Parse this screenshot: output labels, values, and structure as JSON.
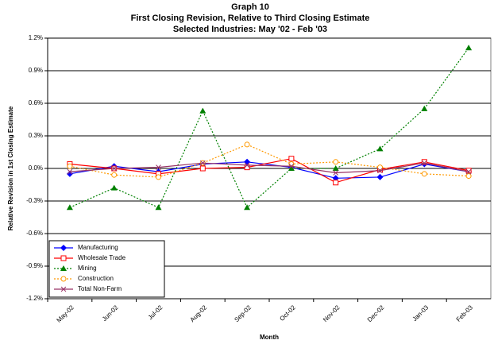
{
  "chart_data": {
    "type": "line",
    "title": [
      "Graph 10",
      "First Closing Revision, Relative to Third Closing Estimate",
      "Selected Industries: May '02 - Feb '03"
    ],
    "x_label": "Month",
    "y_label": "Relative Revision in 1st Closing Estimate",
    "categories": [
      "May-02",
      "Jun-02",
      "Jul-02",
      "Aug-02",
      "Sep-02",
      "Oct-02",
      "Nov-02",
      "Dec-02",
      "Jan-03",
      "Feb-03"
    ],
    "series": [
      {
        "name": "Manufacturing",
        "color": "#0000ff",
        "marker": "diamond",
        "line_style": "solid",
        "values": [
          -0.05,
          0.02,
          -0.03,
          0.04,
          0.06,
          0.01,
          -0.09,
          -0.08,
          0.04,
          -0.03
        ]
      },
      {
        "name": "Wholesale Trade",
        "color": "#ff0000",
        "marker": "square",
        "line_style": "solid",
        "values": [
          0.04,
          0.0,
          -0.05,
          0.0,
          0.01,
          0.09,
          -0.13,
          -0.01,
          0.06,
          -0.02
        ]
      },
      {
        "name": "Mining",
        "color": "#008000",
        "marker": "triangle",
        "line_style": "dotted",
        "values": [
          -0.36,
          -0.18,
          -0.36,
          0.53,
          -0.36,
          0.0,
          0.0,
          0.18,
          0.55,
          1.11
        ]
      },
      {
        "name": "Construction",
        "color": "#ff9900",
        "marker": "circle",
        "line_style": "dotted",
        "values": [
          0.02,
          -0.06,
          -0.08,
          0.05,
          0.22,
          0.04,
          0.06,
          0.01,
          -0.05,
          -0.07
        ]
      },
      {
        "name": "Total Non-Farm",
        "color": "#993366",
        "marker": "x",
        "line_style": "solid",
        "values": [
          -0.03,
          0.0,
          0.01,
          0.05,
          0.03,
          0.02,
          -0.04,
          -0.02,
          0.05,
          -0.03
        ]
      }
    ],
    "ylim": [
      -1.2,
      1.2
    ],
    "yticks": [
      {
        "value": -1.2,
        "label": "-1.2%"
      },
      {
        "value": -0.9,
        "label": "-0.9%"
      },
      {
        "value": -0.6,
        "label": "-0.6%"
      },
      {
        "value": -0.3,
        "label": "-0.3%"
      },
      {
        "value": 0,
        "label": "0.0%"
      },
      {
        "value": 0.3,
        "label": "0.3%"
      },
      {
        "value": 0.6,
        "label": "0.6%"
      },
      {
        "value": 0.9,
        "label": "0.9%"
      },
      {
        "value": 1.2,
        "label": "1.2%"
      }
    ],
    "grid": true,
    "legend": "lower left"
  }
}
